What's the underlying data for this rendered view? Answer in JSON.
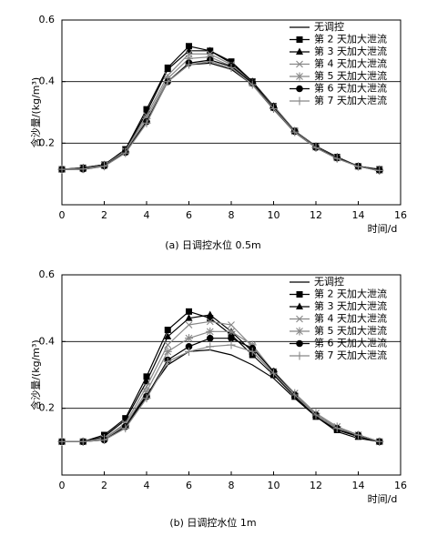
{
  "chart_data": [
    {
      "type": "line",
      "caption": "(a) 日调控水位 0.5m",
      "x_label": "时间/d",
      "y_label": "含沙量/(kg/m³)",
      "x": [
        0,
        1,
        2,
        3,
        4,
        5,
        6,
        7,
        8,
        9,
        10,
        11,
        12,
        13,
        14,
        15
      ],
      "xlim": [
        0,
        16
      ],
      "xticks": [
        0,
        2,
        4,
        6,
        8,
        10,
        12,
        14,
        16
      ],
      "ylim": [
        0,
        0.6
      ],
      "yticks": [
        0.2,
        0.4,
        0.6
      ],
      "grid": "y",
      "legend": "upper right",
      "series": [
        {
          "name": "无调控",
          "color": "#000000",
          "marker": "none",
          "values": [
            0.115,
            0.115,
            0.125,
            0.17,
            0.27,
            0.4,
            0.455,
            0.46,
            0.44,
            0.39,
            0.31,
            0.235,
            0.185,
            0.15,
            0.125,
            0.11
          ]
        },
        {
          "name": "第 2 天加大泄流",
          "color": "#000000",
          "marker": "square",
          "values": [
            0.115,
            0.12,
            0.13,
            0.18,
            0.31,
            0.445,
            0.515,
            0.5,
            0.465,
            0.4,
            0.32,
            0.24,
            0.19,
            0.155,
            0.125,
            0.115
          ]
        },
        {
          "name": "第 3 天加大泄流",
          "color": "#000000",
          "marker": "triangle",
          "values": [
            0.115,
            0.12,
            0.13,
            0.178,
            0.3,
            0.44,
            0.5,
            0.5,
            0.46,
            0.4,
            0.32,
            0.24,
            0.19,
            0.155,
            0.125,
            0.115
          ]
        },
        {
          "name": "第 4 天加大泄流",
          "color": "#888888",
          "marker": "x",
          "values": [
            0.115,
            0.118,
            0.128,
            0.175,
            0.29,
            0.42,
            0.49,
            0.49,
            0.455,
            0.395,
            0.318,
            0.24,
            0.188,
            0.153,
            0.125,
            0.112
          ]
        },
        {
          "name": "第 5 天加大泄流",
          "color": "#888888",
          "marker": "star",
          "values": [
            0.115,
            0.117,
            0.127,
            0.172,
            0.28,
            0.41,
            0.475,
            0.48,
            0.45,
            0.395,
            0.315,
            0.238,
            0.187,
            0.152,
            0.125,
            0.112
          ]
        },
        {
          "name": "第 6 天加大泄流",
          "color": "#000000",
          "marker": "circle",
          "values": [
            0.115,
            0.116,
            0.126,
            0.17,
            0.27,
            0.4,
            0.46,
            0.47,
            0.45,
            0.395,
            0.315,
            0.238,
            0.186,
            0.152,
            0.125,
            0.112
          ]
        },
        {
          "name": "第 7 天加大泄流",
          "color": "#888888",
          "marker": "plus",
          "values": [
            0.115,
            0.116,
            0.125,
            0.168,
            0.265,
            0.4,
            0.455,
            0.465,
            0.445,
            0.39,
            0.312,
            0.236,
            0.185,
            0.15,
            0.124,
            0.111
          ]
        }
      ]
    },
    {
      "type": "line",
      "caption": "(b) 日调控水位 1m",
      "x_label": "时间/d",
      "y_label": "含沙量/(kg/m³)",
      "x": [
        0,
        1,
        2,
        3,
        4,
        5,
        6,
        7,
        8,
        9,
        10,
        11,
        12,
        13,
        14,
        15
      ],
      "xlim": [
        0,
        16
      ],
      "xticks": [
        0,
        2,
        4,
        6,
        8,
        10,
        12,
        14,
        16
      ],
      "ylim": [
        0,
        0.6
      ],
      "yticks": [
        0.2,
        0.4,
        0.6
      ],
      "grid": "y",
      "legend": "upper right",
      "series": [
        {
          "name": "无调控",
          "color": "#000000",
          "marker": "none",
          "values": [
            0.1,
            0.1,
            0.11,
            0.15,
            0.24,
            0.33,
            0.37,
            0.375,
            0.36,
            0.33,
            0.29,
            0.23,
            0.175,
            0.13,
            0.11,
            0.1
          ]
        },
        {
          "name": "第 2 天加大泄流",
          "color": "#000000",
          "marker": "square",
          "values": [
            0.1,
            0.1,
            0.12,
            0.17,
            0.295,
            0.435,
            0.49,
            0.47,
            0.42,
            0.36,
            0.3,
            0.235,
            0.175,
            0.135,
            0.115,
            0.1
          ]
        },
        {
          "name": "第 3 天加大泄流",
          "color": "#000000",
          "marker": "triangle",
          "values": [
            0.1,
            0.1,
            0.115,
            0.165,
            0.28,
            0.415,
            0.47,
            0.48,
            0.43,
            0.37,
            0.305,
            0.24,
            0.18,
            0.14,
            0.115,
            0.1
          ]
        },
        {
          "name": "第 4 天加大泄流",
          "color": "#888888",
          "marker": "x",
          "values": [
            0.1,
            0.1,
            0.11,
            0.155,
            0.265,
            0.39,
            0.45,
            0.46,
            0.45,
            0.385,
            0.31,
            0.245,
            0.185,
            0.145,
            0.12,
            0.1
          ]
        },
        {
          "name": "第 5 天加大泄流",
          "color": "#888888",
          "marker": "star",
          "values": [
            0.1,
            0.1,
            0.11,
            0.15,
            0.25,
            0.37,
            0.41,
            0.43,
            0.43,
            0.39,
            0.31,
            0.245,
            0.185,
            0.145,
            0.12,
            0.1
          ]
        },
        {
          "name": "第 6 天加大泄流",
          "color": "#000000",
          "marker": "circle",
          "values": [
            0.1,
            0.1,
            0.105,
            0.145,
            0.235,
            0.345,
            0.385,
            0.41,
            0.41,
            0.38,
            0.31,
            0.24,
            0.18,
            0.14,
            0.12,
            0.1
          ]
        },
        {
          "name": "第 7 天加大泄流",
          "color": "#888888",
          "marker": "plus",
          "values": [
            0.1,
            0.1,
            0.105,
            0.14,
            0.23,
            0.34,
            0.37,
            0.385,
            0.39,
            0.37,
            0.305,
            0.24,
            0.18,
            0.14,
            0.12,
            0.1
          ]
        }
      ]
    }
  ]
}
